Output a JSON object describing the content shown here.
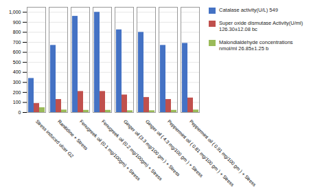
{
  "chart_data": {
    "type": "bar",
    "categories": [
      "Stress induced ulcer G2",
      "Ranitidine + Stress",
      "Fenugreek oil (0.1 mg/100gm) + Stress",
      "Fenugreek oil (0.2 mg/100gm) + Stress",
      "Ginger oil (3.3 mg/100 gm ) + Stress",
      "Ginger oil ( 4.3 mg/100 gm ) + Stress",
      "Peppermint oil ( 0.81 mg/100 gm ) + Stress",
      "Peppermint oil ( 0.91 mg/100 gm ) + Stress"
    ],
    "series": [
      {
        "name": "Catalase activity(U/L) 549",
        "color": "#4472C4",
        "values": [
          340,
          670,
          960,
          1000,
          825,
          800,
          670,
          690
        ]
      },
      {
        "name": "Super oxide dismutase Activity(U/ml)\n126.30±12.08 bc",
        "color": "#C0504D",
        "values": [
          90,
          130,
          210,
          210,
          175,
          150,
          130,
          145
        ]
      },
      {
        "name": "Malondialdehyde concentrations\nnmol/ml 26.85±1.25 b",
        "color": "#9BBB59",
        "values": [
          48,
          25,
          22,
          22,
          18,
          18,
          22,
          25
        ]
      }
    ],
    "ylim": [
      0,
      1050
    ],
    "yticks": [
      0,
      100,
      200,
      300,
      400,
      500,
      600,
      700,
      800,
      900,
      1000
    ],
    "grid": true,
    "legend": "right"
  }
}
